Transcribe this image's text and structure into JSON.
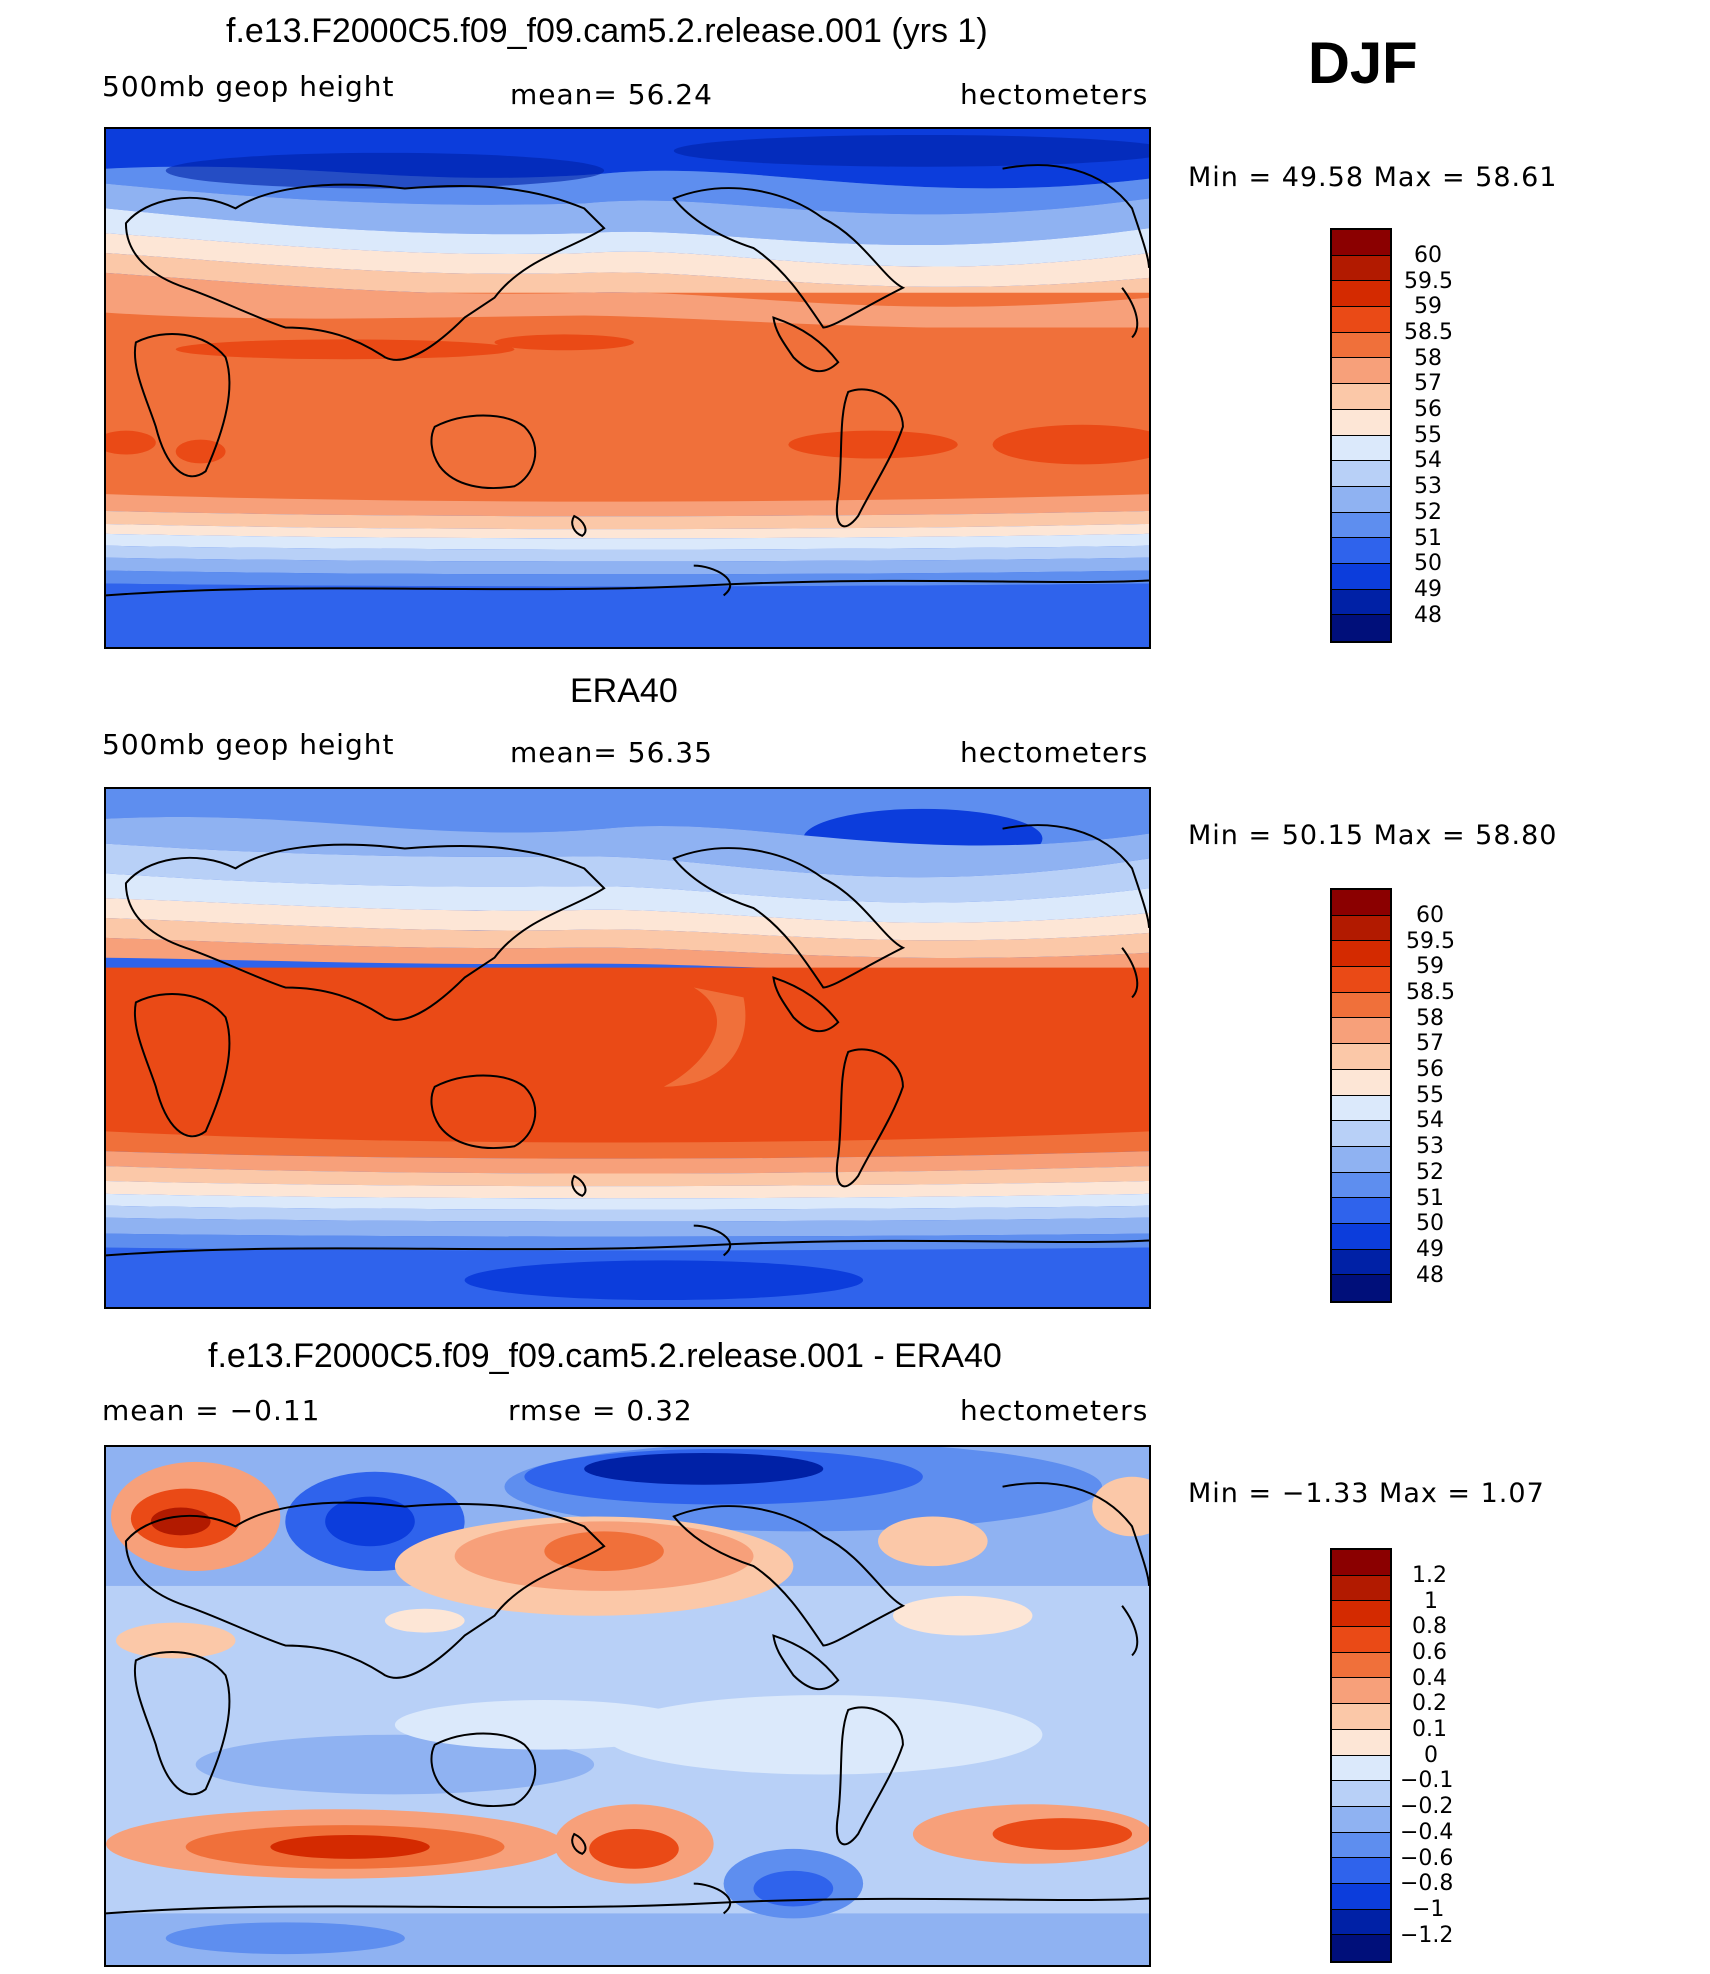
{
  "season": "DJF",
  "panels": [
    {
      "title": "f.e13.F2000C5.f09_f09.cam5.2.release.001 (yrs 1)",
      "left_text": "500mb geop height",
      "mid_text": "mean=   56.24",
      "right_text": "hectometers",
      "minmax": "Min =   49.58 Max =   58.61",
      "colorbar": {
        "labels": [
          "60",
          "59.5",
          "59",
          "58.5",
          "58",
          "57",
          "56",
          "55",
          "54",
          "53",
          "52",
          "51",
          "50",
          "49",
          "48"
        ],
        "colors": [
          "#8b0000",
          "#b21a00",
          "#d42a00",
          "#ea4a16",
          "#f0703a",
          "#f7a07a",
          "#fbc8a8",
          "#fde6d6",
          "#dbe9fb",
          "#b8d0f7",
          "#8fb2f2",
          "#5e8eef",
          "#2f63ec",
          "#0c3ddc",
          "#0021a6",
          "#000f7a"
        ]
      },
      "map_kind": "absolute"
    },
    {
      "title": "ERA40",
      "left_text": "500mb geop height",
      "mid_text": "mean=   56.35",
      "right_text": "hectometers",
      "minmax": "Min =   50.15 Max =   58.80",
      "colorbar": {
        "labels": [
          "60",
          "59.5",
          "59",
          "58.5",
          "58",
          "57",
          "56",
          "55",
          "54",
          "53",
          "52",
          "51",
          "50",
          "49",
          "48"
        ],
        "colors": [
          "#8b0000",
          "#b21a00",
          "#d42a00",
          "#ea4a16",
          "#f0703a",
          "#f7a07a",
          "#fbc8a8",
          "#fde6d6",
          "#dbe9fb",
          "#b8d0f7",
          "#8fb2f2",
          "#5e8eef",
          "#2f63ec",
          "#0c3ddc",
          "#0021a6",
          "#000f7a"
        ]
      },
      "map_kind": "absolute"
    },
    {
      "title": "f.e13.F2000C5.f09_f09.cam5.2.release.001 - ERA40",
      "left_text": "mean =   −0.11",
      "mid_text": "rmse =    0.32",
      "right_text": "hectometers",
      "minmax": "Min =   −1.33 Max =    1.07",
      "colorbar": {
        "labels": [
          "1.2",
          "1",
          "0.8",
          "0.6",
          "0.4",
          "0.2",
          "0.1",
          "0",
          "−0.1",
          "−0.2",
          "−0.4",
          "−0.6",
          "−0.8",
          "−1",
          "−1.2"
        ],
        "colors": [
          "#8b0000",
          "#b21a00",
          "#d42a00",
          "#ea4a16",
          "#f0703a",
          "#f7a07a",
          "#fbc8a8",
          "#fde6d6",
          "#dbe9fb",
          "#b8d0f7",
          "#8fb2f2",
          "#5e8eef",
          "#2f63ec",
          "#0c3ddc",
          "#0021a6",
          "#000f7a"
        ]
      },
      "map_kind": "difference"
    }
  ],
  "colors": {
    "deep_red": "#8b0000",
    "red": "#d42a00",
    "orange": "#f0703a",
    "light_orange": "#f7a07a",
    "cream": "#fde6d6",
    "pale_blue": "#dbe9fb",
    "light_blue": "#b8d0f7",
    "mid_blue": "#5e8eef",
    "blue": "#2f63ec",
    "dark_blue": "#0c3ddc",
    "navy": "#0021a6"
  }
}
